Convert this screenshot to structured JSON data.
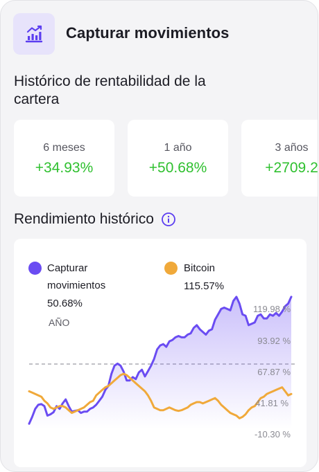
{
  "header": {
    "title": "Capturar movimientos",
    "icon": "bar-chart-icon",
    "icon_color": "#5b3df0"
  },
  "history": {
    "title": "Histórico de rentabilidad de la cartera",
    "periods": [
      {
        "label": "6 meses",
        "value": "+34.93%"
      },
      {
        "label": "1 año",
        "value": "+50.68%"
      },
      {
        "label": "3 años",
        "value": "+2709.2"
      }
    ]
  },
  "performance": {
    "title": "Rendimiento histórico",
    "info_icon": "info-icon"
  },
  "legend": {
    "portfolio_name": "Capturar movimientos",
    "portfolio_value": "50.68%",
    "portfolio_period": "AÑO",
    "benchmark_name": "Bitcoin",
    "benchmark_value": "115.57%"
  },
  "colors": {
    "portfolio": "#6a4cf2",
    "benchmark": "#f0a93a",
    "positive": "#2fc02f",
    "accent_bg": "#e7e3fb"
  },
  "chart_data": {
    "type": "line",
    "y_tick_labels": [
      "119.98 %",
      "93.92 %",
      "67.87 %",
      "41.81 %",
      "-10.30 %"
    ],
    "series": [
      {
        "name": "Capturar movimientos",
        "values": [
          -12,
          -2,
          10,
          16,
          17,
          14,
          0,
          2,
          5,
          14,
          10,
          18,
          24,
          14,
          6,
          7,
          8,
          4,
          6,
          6,
          10,
          12,
          16,
          22,
          28,
          38,
          44,
          62,
          74,
          77,
          74,
          65,
          52,
          52,
          57,
          54,
          64,
          68,
          58,
          66,
          74,
          84,
          98,
          104,
          106,
          102,
          110,
          112,
          116,
          118,
          116,
          116,
          120,
          122,
          130,
          134,
          128,
          124,
          120,
          126,
          128,
          142,
          150,
          158,
          160,
          158,
          156,
          170,
          176,
          166,
          150,
          148,
          134,
          136,
          138,
          148,
          150,
          144,
          144,
          150,
          148,
          152,
          148,
          154,
          162,
          166,
          176
        ]
      },
      {
        "name": "Bitcoin",
        "values": [
          36,
          34,
          32,
          30,
          28,
          22,
          18,
          12,
          10,
          12,
          14,
          14,
          12,
          8,
          4,
          6,
          8,
          10,
          12,
          16,
          20,
          22,
          30,
          34,
          38,
          42,
          44,
          48,
          52,
          56,
          60,
          62,
          60,
          56,
          52,
          48,
          44,
          40,
          36,
          30,
          22,
          12,
          10,
          8,
          8,
          10,
          12,
          10,
          8,
          7,
          8,
          10,
          12,
          16,
          18,
          20,
          20,
          18,
          20,
          22,
          24,
          26,
          22,
          16,
          12,
          8,
          4,
          2,
          0,
          -4,
          -2,
          2,
          8,
          12,
          14,
          20,
          26,
          28,
          32,
          34,
          36,
          38,
          40,
          42,
          36,
          30,
          32
        ]
      }
    ],
    "baseline_label": "67.87 %",
    "grid": false,
    "legend": "top"
  }
}
